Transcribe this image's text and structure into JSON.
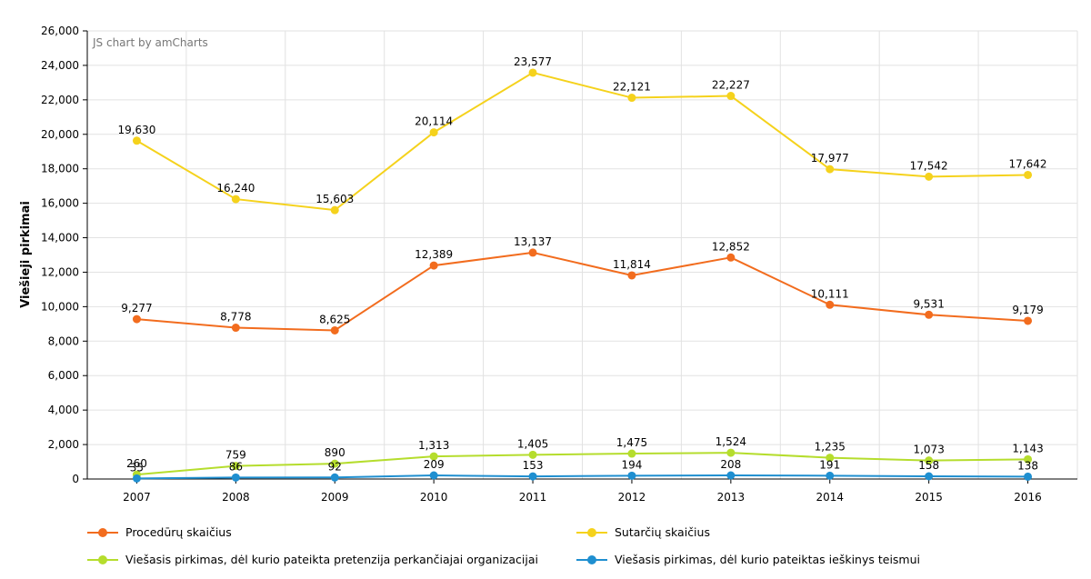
{
  "credit": "JS chart by amCharts",
  "chart_data": {
    "type": "line",
    "ylabel": "Viešieji pirkimai",
    "xlabel": "",
    "ylim": [
      0,
      26000
    ],
    "y_ticks": [
      "0",
      "2,000",
      "4,000",
      "6,000",
      "8,000",
      "10,000",
      "12,000",
      "14,000",
      "16,000",
      "18,000",
      "20,000",
      "22,000",
      "24,000",
      "26,000"
    ],
    "y_tick_values": [
      0,
      2000,
      4000,
      6000,
      8000,
      10000,
      12000,
      14000,
      16000,
      18000,
      20000,
      22000,
      24000,
      26000
    ],
    "categories": [
      "2007",
      "2008",
      "2009",
      "2010",
      "2011",
      "2012",
      "2013",
      "2014",
      "2015",
      "2016"
    ],
    "grid": true,
    "legend_position": "bottom",
    "series": [
      {
        "name": "Procedūrų skaičius",
        "color": "#f26c1e",
        "values": [
          9277,
          8778,
          8625,
          12389,
          13137,
          11814,
          12852,
          10111,
          9531,
          9179
        ],
        "labels": [
          "9,277",
          "8,778",
          "8,625",
          "12,389",
          "13,137",
          "11,814",
          "12,852",
          "10,111",
          "9,531",
          "9,179"
        ]
      },
      {
        "name": "Sutarčių skaičius",
        "color": "#f5d21c",
        "values": [
          19630,
          16240,
          15603,
          20114,
          23577,
          22121,
          22227,
          17977,
          17542,
          17642
        ],
        "labels": [
          "19,630",
          "16,240",
          "15,603",
          "20,114",
          "23,577",
          "22,121",
          "22,227",
          "17,977",
          "17,542",
          "17,642"
        ]
      },
      {
        "name": "Viešasis pirkimas, dėl kurio pateikta pretenzija perkančiajai organizacijai",
        "color": "#b5dd2d",
        "values": [
          260,
          759,
          890,
          1313,
          1405,
          1475,
          1524,
          1235,
          1073,
          1143
        ],
        "labels": [
          "260",
          "759",
          "890",
          "1,313",
          "1,405",
          "1,475",
          "1,524",
          "1,235",
          "1,073",
          "1,143"
        ]
      },
      {
        "name": "Viešasis pirkimas, dėl kurio pateiktas ieškinys teismui",
        "color": "#1f8fd0",
        "values": [
          35,
          86,
          92,
          209,
          153,
          194,
          208,
          191,
          158,
          138
        ],
        "labels": [
          "35",
          "86",
          "92",
          "209",
          "153",
          "194",
          "208",
          "191",
          "158",
          "138"
        ]
      }
    ]
  }
}
